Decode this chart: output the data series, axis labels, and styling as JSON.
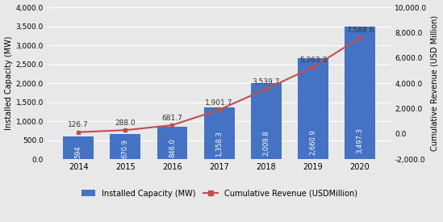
{
  "years": [
    2014,
    2015,
    2016,
    2017,
    2018,
    2019,
    2020
  ],
  "installed_capacity": [
    594,
    670.9,
    846.0,
    1358.3,
    2009.8,
    2660.9,
    3497.3
  ],
  "capacity_labels": [
    "594",
    "670.9",
    "846.0",
    "1,358.3",
    "2,009.8",
    "2,660.9",
    "3,497.3"
  ],
  "cumulative_revenue": [
    126.7,
    288.0,
    681.7,
    1901.7,
    3539.7,
    5263.3,
    7588.6
  ],
  "revenue_labels": [
    "126.7",
    "288.0",
    "681.7",
    "1,901.7",
    "3,539.7",
    "5,263.3",
    "7,588.6"
  ],
  "bar_color": "#4472C4",
  "line_color": "#C0504D",
  "ylabel_left": "Installed Capacity (MW)",
  "ylabel_right": "Cumulative Revenue (USD Million)",
  "ylim_left": [
    0,
    4000
  ],
  "ylim_right": [
    -2000,
    10000
  ],
  "yticks_left": [
    0.0,
    500.0,
    1000.0,
    1500.0,
    2000.0,
    2500.0,
    3000.0,
    3500.0,
    4000.0
  ],
  "yticks_right": [
    -2000.0,
    0.0,
    2000.0,
    4000.0,
    6000.0,
    8000.0,
    10000.0
  ],
  "legend_labels": [
    "Installed Capacity (MW)",
    "Cumulative Revenue (USDMillion)"
  ],
  "background_color": "#e8e8e8",
  "plot_bg_color": "#e8e8e8",
  "bar_label_color": "#ffffff",
  "revenue_label_color": "#333333"
}
